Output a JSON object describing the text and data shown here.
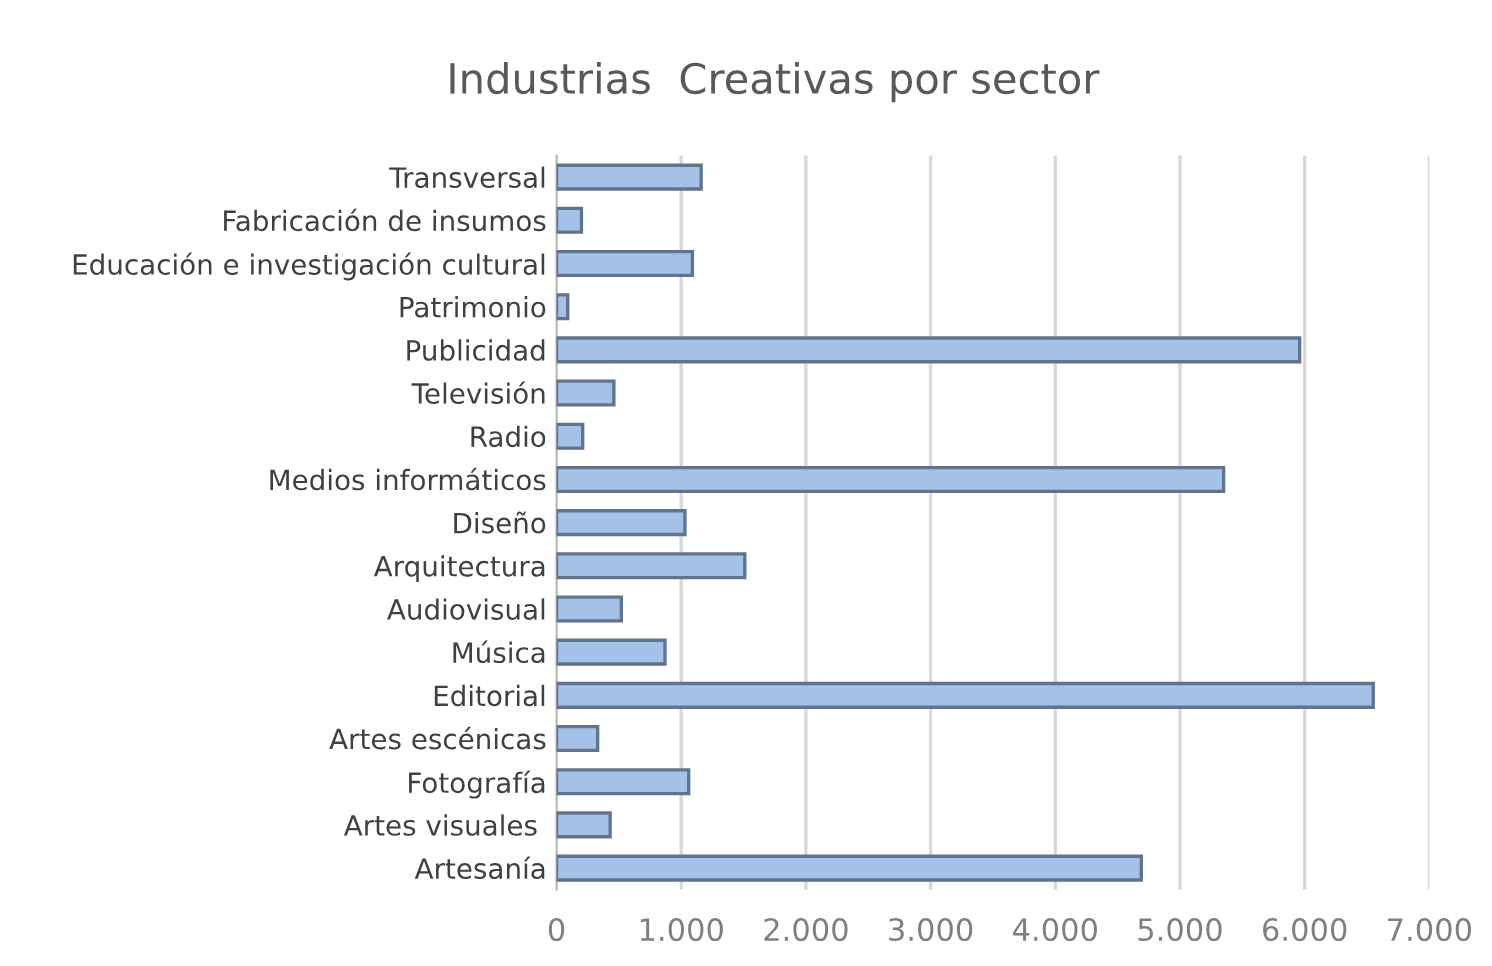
{
  "chart_data": {
    "type": "bar",
    "orientation": "horizontal",
    "title": "Industrias  Creativas por sector",
    "categories": [
      "Transversal",
      "Fabricación de insumos",
      "Educación e investigación cultural",
      "Patrimonio",
      "Publicidad",
      "Televisión",
      "Radio",
      "Medios informáticos",
      "Diseño",
      "Arquitectura",
      "Audiovisual",
      "Música",
      "Editorial",
      "Artes escénicas",
      "Fotografía",
      "Artes visuales ",
      "Artesanía"
    ],
    "values": [
      1160,
      200,
      1090,
      90,
      5960,
      460,
      210,
      5350,
      1030,
      1510,
      520,
      870,
      6550,
      330,
      1060,
      430,
      4690
    ],
    "color": "#a4c2e8",
    "xlim": [
      0,
      7000
    ],
    "xticks": [
      0,
      {
        "value": 1000,
        "label": "1.000"
      },
      {
        "value": 2000,
        "label": "2.000"
      },
      {
        "value": 3000,
        "label": "3.000"
      },
      {
        "value": 4000,
        "label": "4.000"
      },
      {
        "value": 5000,
        "label": "5.000"
      },
      {
        "value": 6000,
        "label": "6.000"
      },
      {
        "value": 7000,
        "label": "7.000"
      }
    ],
    "grid": "x",
    "legend": false
  }
}
